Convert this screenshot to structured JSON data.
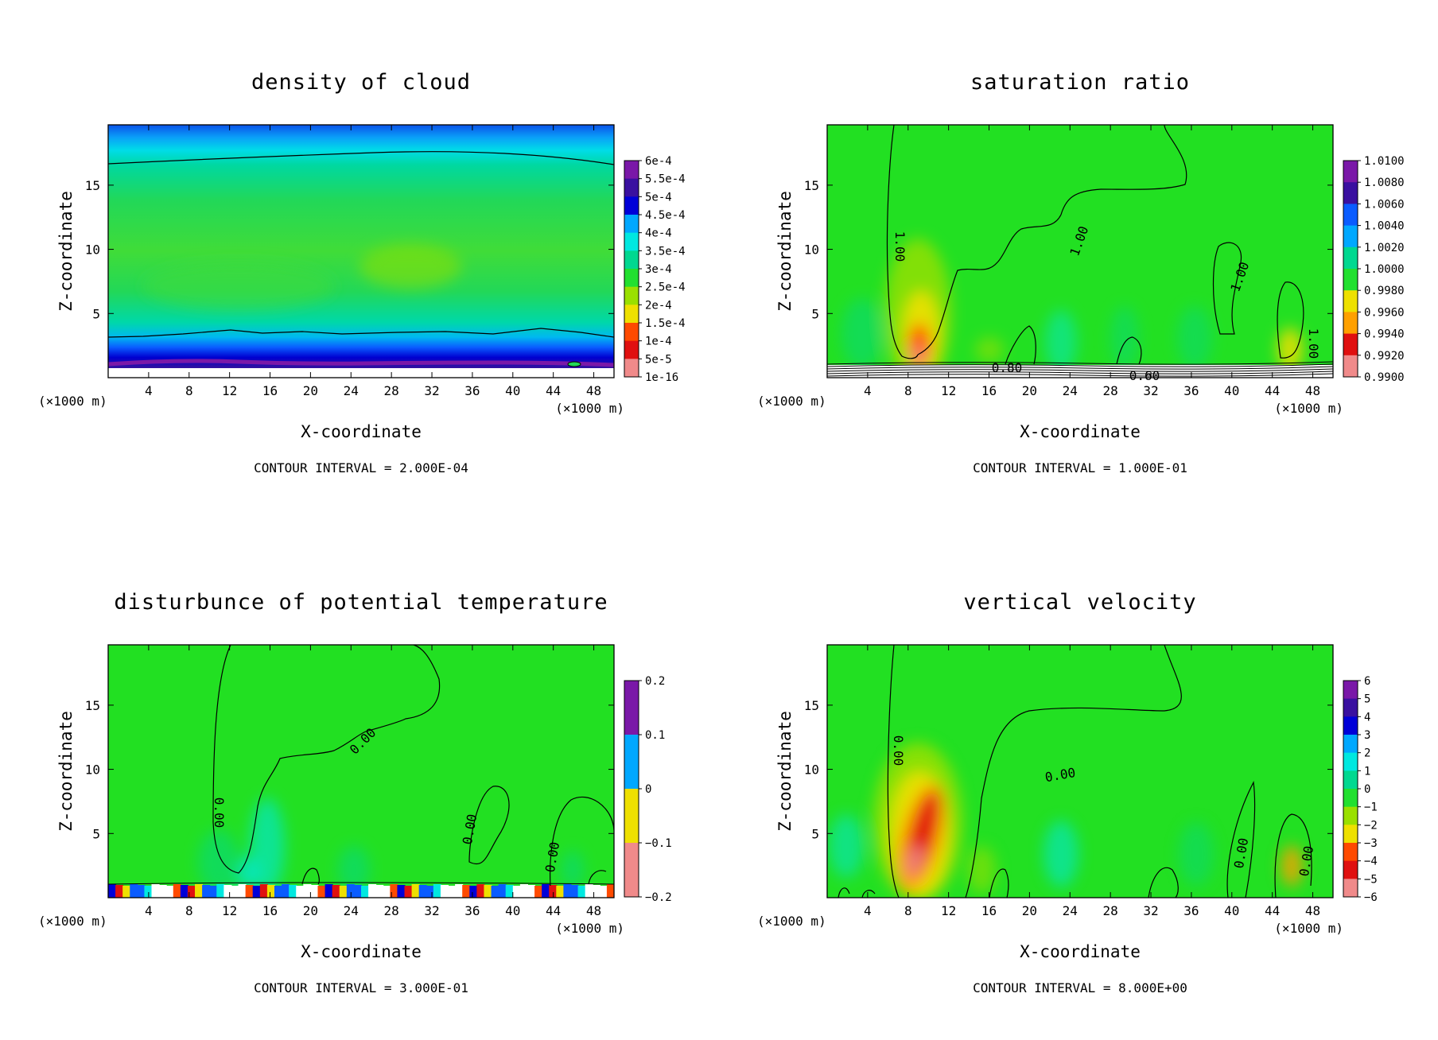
{
  "chart_data": [
    {
      "type": "heatmap",
      "title": "density of cloud",
      "xlabel": "X-coordinate",
      "ylabel": "Z-coordinate",
      "x_unit": "(×1000 m)",
      "y_unit": "(×1000 m)",
      "xlim": [
        0,
        50
      ],
      "ylim": [
        0,
        19.7
      ],
      "x_ticks": [
        "4",
        "8",
        "12",
        "16",
        "20",
        "24",
        "28",
        "32",
        "36",
        "40",
        "44",
        "48"
      ],
      "y_ticks": [
        "5",
        "10",
        "15"
      ],
      "colorbar_labels": [
        "6e-4",
        "5.5e-4",
        "5e-4",
        "4.5e-4",
        "4e-4",
        "3.5e-4",
        "3e-4",
        "2.5e-4",
        "2e-4",
        "1.5e-4",
        "1e-4",
        "5e-5",
        "1e-16"
      ],
      "colorbar_range": [
        0,
        0.0006
      ],
      "contour_interval_text": "CONTOUR INTERVAL = 2.000E-04",
      "contour_labels": []
    },
    {
      "type": "heatmap",
      "title": "saturation ratio",
      "xlabel": "X-coordinate",
      "ylabel": "Z-coordinate",
      "x_unit": "(×1000 m)",
      "y_unit": "(×1000 m)",
      "xlim": [
        0,
        50
      ],
      "ylim": [
        0,
        19.7
      ],
      "x_ticks": [
        "4",
        "8",
        "12",
        "16",
        "20",
        "24",
        "28",
        "32",
        "36",
        "40",
        "44",
        "48"
      ],
      "y_ticks": [
        "5",
        "10",
        "15"
      ],
      "colorbar_labels": [
        "1.0100",
        "1.0080",
        "1.0060",
        "1.0040",
        "1.0020",
        "1.0000",
        "0.9980",
        "0.9960",
        "0.9940",
        "0.9920",
        "0.9900"
      ],
      "colorbar_range": [
        0.99,
        1.01
      ],
      "contour_interval_text": "CONTOUR INTERVAL = 1.000E-01",
      "contour_labels": [
        "1.00",
        "1.00",
        "1.00",
        "1.00",
        "0.80",
        "0.60"
      ]
    },
    {
      "type": "heatmap",
      "title": "disturbunce of potential temperature",
      "xlabel": "X-coordinate",
      "ylabel": "Z-coordinate",
      "x_unit": "(×1000 m)",
      "y_unit": "(×1000 m)",
      "xlim": [
        0,
        50
      ],
      "ylim": [
        0,
        19.7
      ],
      "x_ticks": [
        "4",
        "8",
        "12",
        "16",
        "20",
        "24",
        "28",
        "32",
        "36",
        "40",
        "44",
        "48"
      ],
      "y_ticks": [
        "5",
        "10",
        "15"
      ],
      "colorbar_labels": [
        "0.2",
        "0.1",
        "0",
        "−0.1",
        "−0.2"
      ],
      "colorbar_range": [
        -0.2,
        0.2
      ],
      "contour_interval_text": "CONTOUR INTERVAL = 3.000E-01",
      "contour_labels": [
        "0.00",
        "0.00",
        "0.00",
        "0.00"
      ]
    },
    {
      "type": "heatmap",
      "title": "vertical velocity",
      "xlabel": "X-coordinate",
      "ylabel": "Z-coordinate",
      "x_unit": "(×1000 m)",
      "y_unit": "(×1000 m)",
      "xlim": [
        0,
        50
      ],
      "ylim": [
        0,
        19.7
      ],
      "x_ticks": [
        "4",
        "8",
        "12",
        "16",
        "20",
        "24",
        "28",
        "32",
        "36",
        "40",
        "44",
        "48"
      ],
      "y_ticks": [
        "5",
        "10",
        "15"
      ],
      "colorbar_labels": [
        "6",
        "5",
        "4",
        "3",
        "2",
        "1",
        "0",
        "−1",
        "−2",
        "−3",
        "−4",
        "−5",
        "−6"
      ],
      "colorbar_range": [
        -6,
        6
      ],
      "contour_interval_text": "CONTOUR INTERVAL = 8.000E+00",
      "contour_labels": [
        "0.00",
        "0.00",
        "0.00",
        "0.00"
      ]
    }
  ],
  "colors": {
    "scale": [
      "#7a18a8",
      "#3a10a0",
      "#0000d8",
      "#0a5cff",
      "#00a8ff",
      "#00e8e0",
      "#00d890",
      "#22e030",
      "#9ae000",
      "#eee000",
      "#ffa000",
      "#ff4a00",
      "#e01010",
      "#f08a8a"
    ],
    "background_green": "#22e022",
    "contour": "#000000"
  }
}
